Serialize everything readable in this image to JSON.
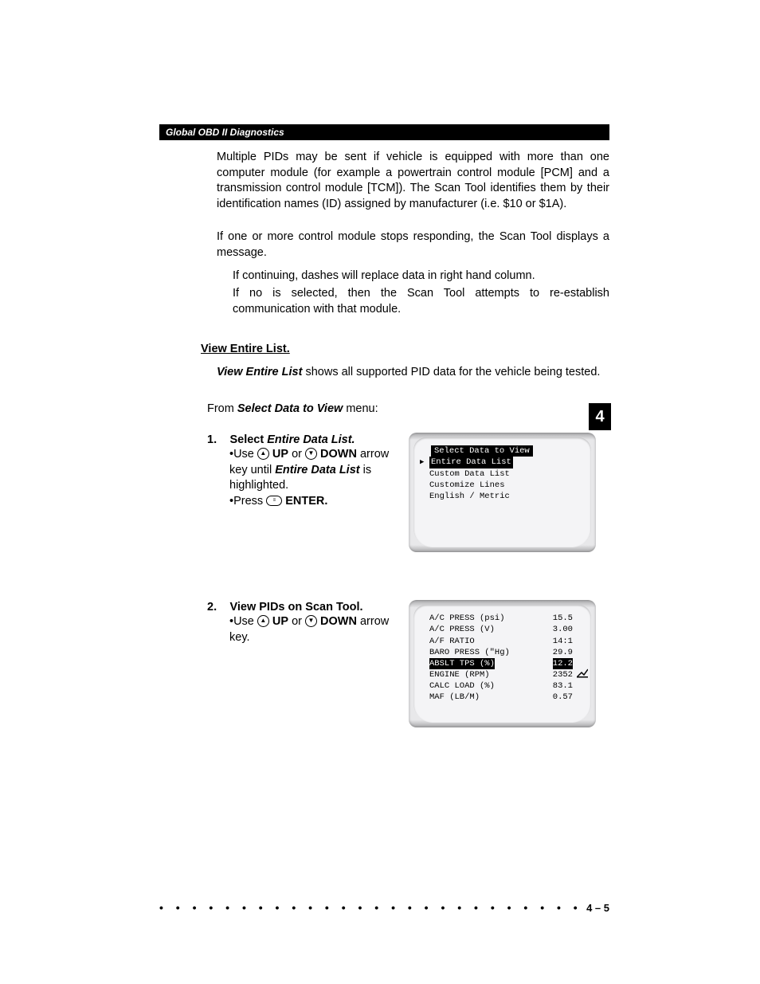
{
  "header": {
    "title": "Global OBD II Diagnostics"
  },
  "tab": {
    "chapter": "4"
  },
  "paragraphs": {
    "p1": "Multiple PIDs may be sent if vehicle is equipped with more than one computer module (for example a powertrain control module [PCM] and a transmission control module [TCM]). The Scan Tool identifies them by their identification names (ID) assigned by manufacturer (i.e. $10 or $1A).",
    "p2": "If one or more control module stops responding, the Scan Tool displays a message.",
    "p3": "If continuing, dashes will replace data in right hand column.",
    "p4": "If no is selected, then the Scan Tool attempts to re-establish communication with that module."
  },
  "section": {
    "title": "View Entire List.",
    "intro_bold": "View Entire List",
    "intro_rest": " shows all supported PID data for the vehicle being tested.",
    "from_prefix": "From ",
    "from_bold": "Select Data to View",
    "from_suffix": " menu:"
  },
  "steps": {
    "s1": {
      "num": "1.",
      "label_prefix": "Select  ",
      "label_bold": "Entire Data List.",
      "line1_a": "•Use ",
      "line1_up": " UP",
      "line1_or": " or ",
      "line1_down": " DOWN",
      "line1_b": " arrow key until ",
      "line1_bold": "Entire Data List",
      "line1_c": " is highlighted.",
      "line2_a": "•Press ",
      "line2_b": " ENTER."
    },
    "s2": {
      "num": "2.",
      "label": "View PIDs on Scan Tool.",
      "line1_a": "•Use ",
      "line1_up": " UP",
      "line1_or": " or ",
      "line1_down": " DOWN",
      "line1_b": " arrow key."
    }
  },
  "screen1": {
    "title": "Select Data to View",
    "items": [
      "Entire Data List",
      "Custom Data List",
      "Customize Lines",
      "English / Metric"
    ],
    "selected_index": 0
  },
  "screen2": {
    "rows": [
      {
        "label": "A/C PRESS (psi)",
        "value": "15.5"
      },
      {
        "label": "A/C PRESS (V)",
        "value": "3.00"
      },
      {
        "label": "A/F RATIO",
        "value": "14:1"
      },
      {
        "label": "BARO PRESS (\"Hg)",
        "value": "29.9"
      },
      {
        "label": "ABSLT TPS (%)",
        "value": "12.2"
      },
      {
        "label": "ENGINE (RPM)",
        "value": "2352"
      },
      {
        "label": "CALC LOAD (%)",
        "value": "83.1"
      },
      {
        "label": "MAF (LB/M)",
        "value": "0.57"
      }
    ],
    "selected_index": 4
  },
  "footer": {
    "page": "4 – 5",
    "dots": "• • • • • • • • • • • • • • • • • • • • • • • • • • • • • • • • • • • • • • • • • • • • • • • • • • • • • • • • •"
  },
  "colors": {
    "black": "#000000",
    "white": "#ffffff",
    "screen_bg": "#f4f4f6",
    "frame_light": "#e8e8ea",
    "frame_dark": "#a8a8aa"
  }
}
